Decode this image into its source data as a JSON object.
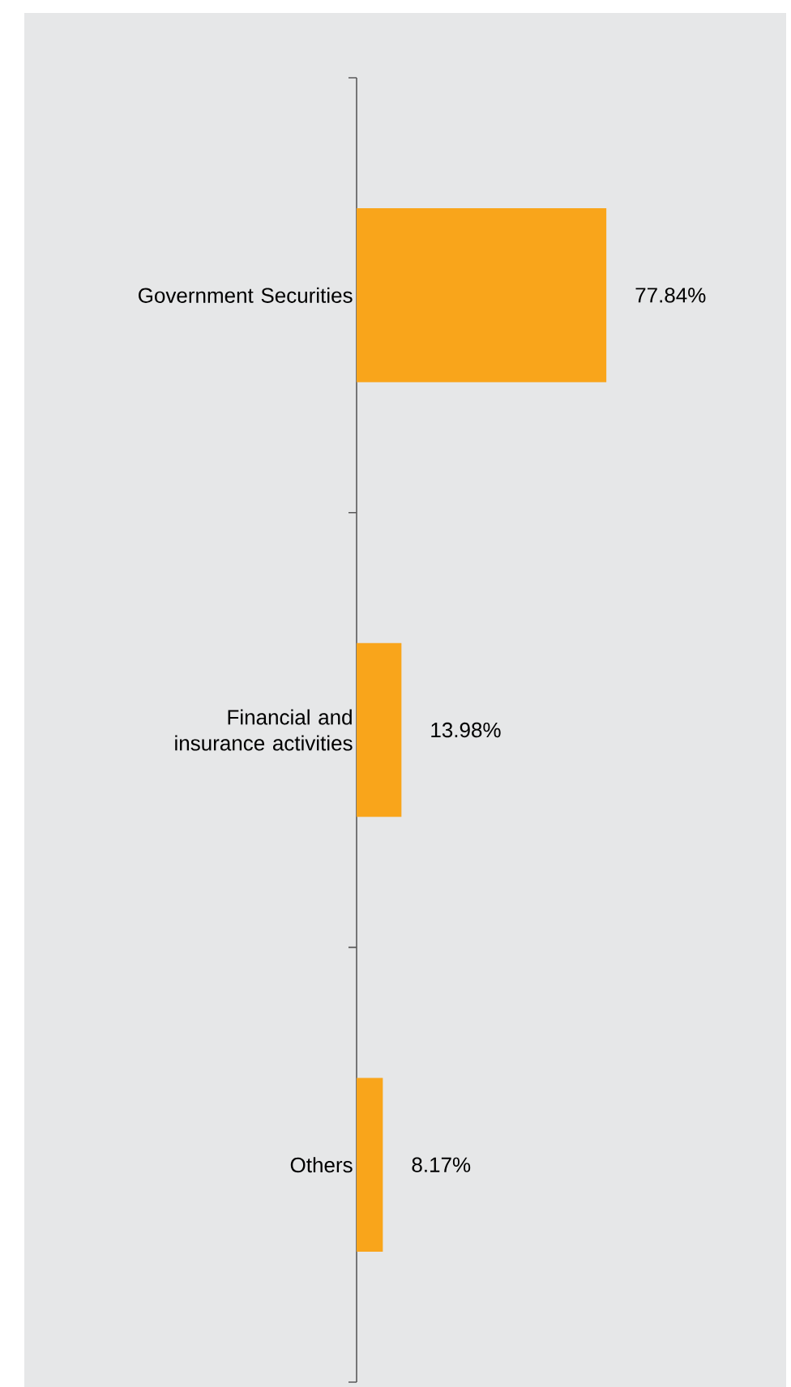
{
  "chart_data": {
    "type": "bar",
    "orientation": "horizontal",
    "categories": [
      "Government Securities",
      "Financial and insurance activities",
      "Others"
    ],
    "values": [
      77.84,
      13.98,
      8.17
    ],
    "value_labels": [
      "77.84%",
      "13.98%",
      "8.17%"
    ],
    "color": "#f9a51b"
  }
}
